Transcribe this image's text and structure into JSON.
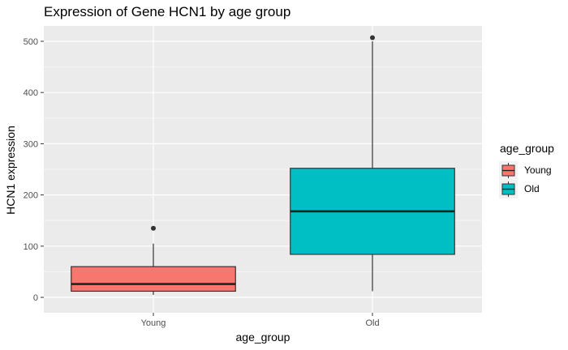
{
  "chart_data": {
    "type": "boxplot",
    "title": "Expression of Gene HCN1 by age group",
    "xlabel": "age_group",
    "ylabel": "HCN1 expression",
    "categories": [
      "Young",
      "Old"
    ],
    "ylim": [
      -30,
      530
    ],
    "yticks": [
      0,
      100,
      200,
      300,
      400,
      500
    ],
    "grid": true,
    "legend": {
      "title": "age_group",
      "position": "right",
      "entries": [
        "Young",
        "Old"
      ]
    },
    "boxes": [
      {
        "category": "Young",
        "color": "#F8766D",
        "lower_whisker": 5,
        "q1": 12,
        "median": 26,
        "q3": 60,
        "upper_whisker": 105,
        "outliers": [
          135
        ]
      },
      {
        "category": "Old",
        "color": "#00BFC4",
        "lower_whisker": 12,
        "q1": 84,
        "median": 168,
        "q3": 252,
        "upper_whisker": 500,
        "outliers": [
          507
        ]
      }
    ]
  }
}
